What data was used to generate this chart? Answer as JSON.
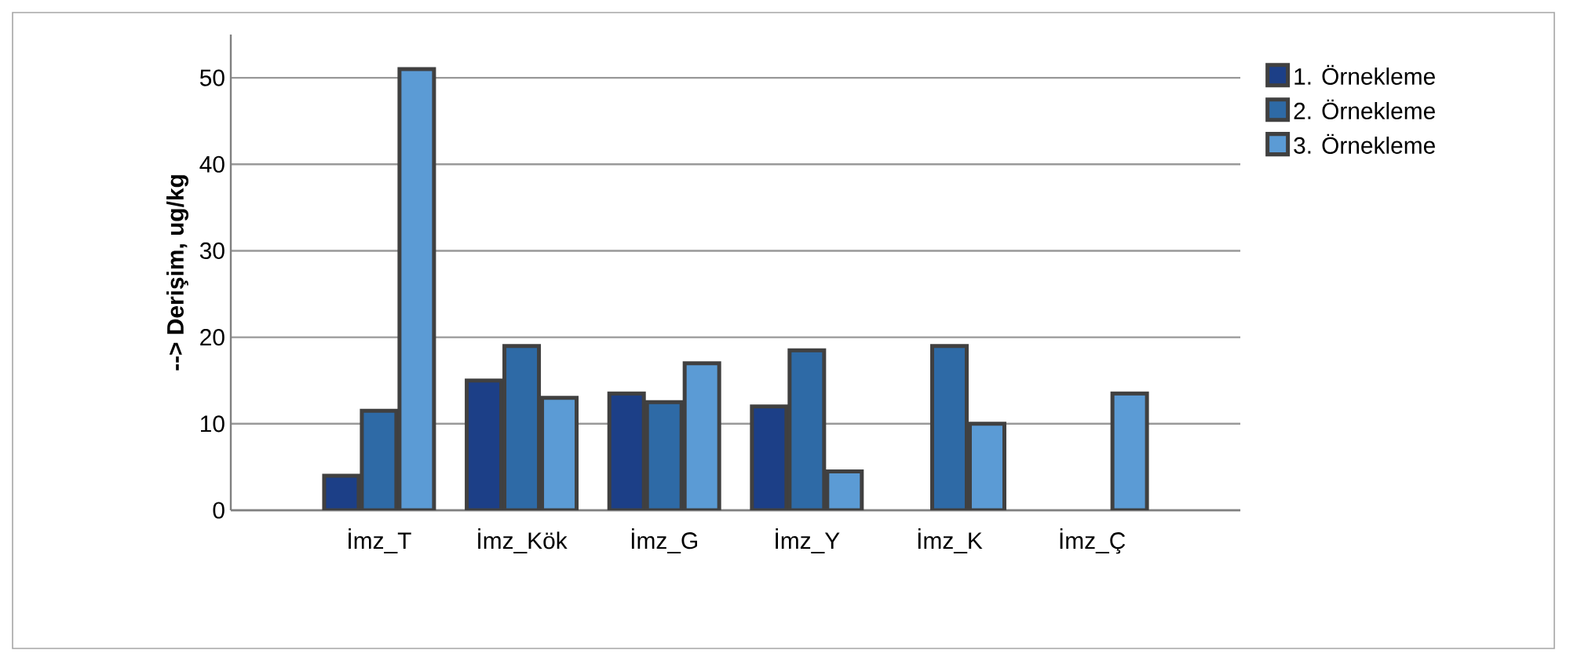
{
  "chart_data": {
    "type": "bar",
    "ylabel": "--> Derişim, ug/kg",
    "categories": [
      "İmz_T",
      "İmz_Kök",
      "İmz_G",
      "İmz_Y",
      "İmz_K",
      "İmz_Ç"
    ],
    "series": [
      {
        "name": "1. Örnekleme",
        "color": "#1c3f87",
        "values": [
          4,
          15,
          13.5,
          12,
          null,
          null
        ]
      },
      {
        "name": "2. Örnekleme",
        "color": "#2e6aa6",
        "values": [
          11.5,
          19,
          12.5,
          18.5,
          19,
          null
        ]
      },
      {
        "name": "3. Örnekleme",
        "color": "#5b9bd5",
        "values": [
          51,
          13,
          17,
          4.5,
          10,
          13.5
        ]
      }
    ],
    "ylim": [
      0,
      55
    ],
    "yticks": [
      0,
      10,
      20,
      30,
      40,
      50
    ],
    "grid": "y",
    "legend": "right"
  }
}
